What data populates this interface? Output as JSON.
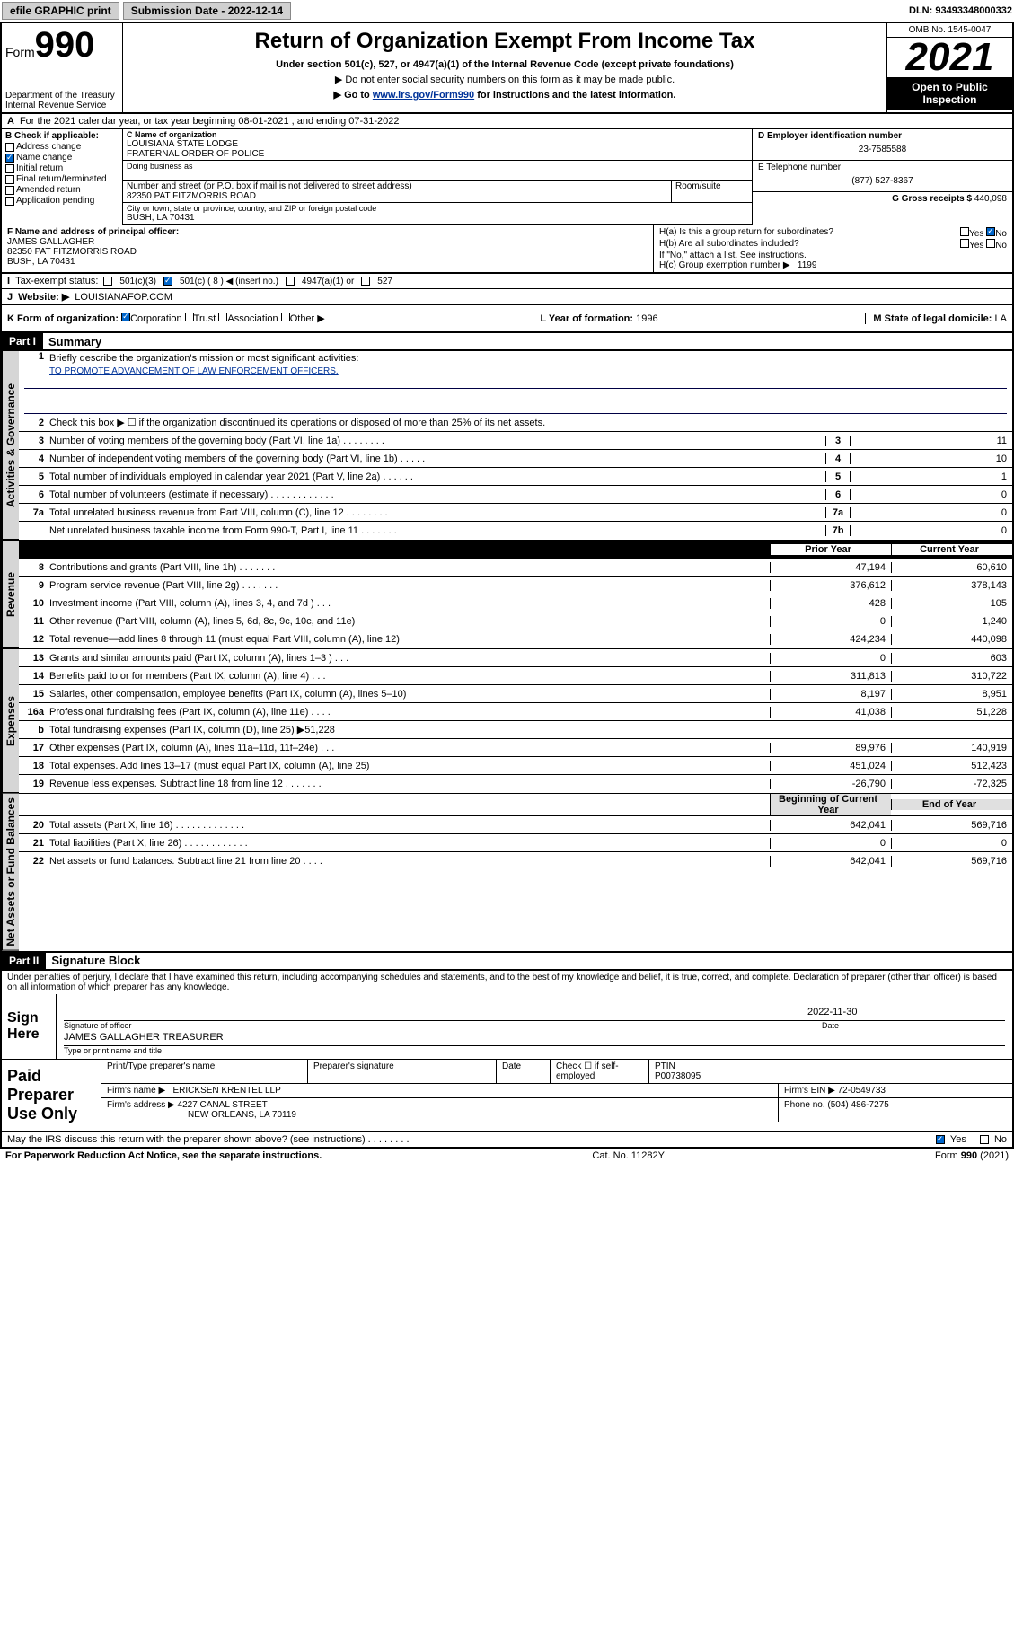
{
  "topbar": {
    "efile": "efile GRAPHIC print",
    "submission": "Submission Date - 2022-12-14",
    "dln": "DLN: 93493348000332"
  },
  "header": {
    "form_label": "Form",
    "form_num": "990",
    "dept": "Department of the Treasury",
    "irs": "Internal Revenue Service",
    "title": "Return of Organization Exempt From Income Tax",
    "sub": "Under section 501(c), 527, or 4947(a)(1) of the Internal Revenue Code (except private foundations)",
    "note1": "▶ Do not enter social security numbers on this form as it may be made public.",
    "note2_pre": "▶ Go to ",
    "note2_link": "www.irs.gov/Form990",
    "note2_post": " for instructions and the latest information.",
    "omb": "OMB No. 1545-0047",
    "year": "2021",
    "open": "Open to Public Inspection"
  },
  "rowA": "For the 2021 calendar year, or tax year beginning 08-01-2021    , and ending 07-31-2022",
  "sectionB": {
    "label": "B Check if applicable:",
    "items": [
      "Address change",
      "Name change",
      "Initial return",
      "Final return/terminated",
      "Amended return",
      "Application pending"
    ],
    "checked_idx": 1
  },
  "sectionC": {
    "lab_name": "C Name of organization",
    "name": "LOUISIANA STATE LODGE",
    "name2": "FRATERNAL ORDER OF POLICE",
    "dba_lab": "Doing business as",
    "addr_lab": "Number and street (or P.O. box if mail is not delivered to street address)",
    "room_lab": "Room/suite",
    "addr": "82350 PAT FITZMORRIS ROAD",
    "city_lab": "City or town, state or province, country, and ZIP or foreign postal code",
    "city": "BUSH, LA  70431"
  },
  "sectionD": {
    "lab": "D Employer identification number",
    "val": "23-7585588",
    "tel_lab": "E Telephone number",
    "tel": "(877) 527-8367",
    "gross_lab": "G Gross receipts $",
    "gross": "440,098"
  },
  "sectionF": {
    "lab": "F Name and address of principal officer:",
    "name": "JAMES GALLAGHER",
    "addr": "82350 PAT FITZMORRIS ROAD",
    "city": "BUSH, LA  70431"
  },
  "sectionH": {
    "a": "H(a)  Is this a group return for subordinates?",
    "b": "H(b)  Are all subordinates included?",
    "note": "If \"No,\" attach a list. See instructions.",
    "c_lab": "H(c)  Group exemption number ▶",
    "c_val": "1199",
    "yes": "Yes",
    "no": "No"
  },
  "rowI": {
    "lab": "Tax-exempt status:",
    "opts": [
      "501(c)(3)",
      "501(c) ( 8 ) ◀ (insert no.)",
      "4947(a)(1) or",
      "527"
    ],
    "checked_idx": 1
  },
  "rowJ": {
    "lab": "Website: ▶",
    "val": "LOUISIANAFOP.COM"
  },
  "rowK": {
    "lab": "K Form of organization:",
    "opts": [
      "Corporation",
      "Trust",
      "Association",
      "Other ▶"
    ],
    "checked_idx": 0,
    "l_lab": "L Year of formation:",
    "l_val": "1996",
    "m_lab": "M State of legal domicile:",
    "m_val": "LA"
  },
  "partI": {
    "hdr": "Part I",
    "title": "Summary",
    "q1": "Briefly describe the organization's mission or most significant activities:",
    "mission": "TO PROMOTE ADVANCEMENT OF LAW ENFORCEMENT OFFICERS.",
    "q2": "Check this box ▶ ☐  if the organization discontinued its operations or disposed of more than 25% of its net assets."
  },
  "gov_rows": [
    {
      "n": "3",
      "d": "Number of voting members of the governing body (Part VI, line 1a)   .    .    .    .    .    .    .    .",
      "box": "3",
      "v": "11"
    },
    {
      "n": "4",
      "d": "Number of independent voting members of the governing body (Part VI, line 1b)   .    .    .    .    .",
      "box": "4",
      "v": "10"
    },
    {
      "n": "5",
      "d": "Total number of individuals employed in calendar year 2021 (Part V, line 2a)   .    .    .    .    .    .",
      "box": "5",
      "v": "1"
    },
    {
      "n": "6",
      "d": "Total number of volunteers (estimate if necessary)   .    .    .    .    .    .    .    .    .    .    .    .",
      "box": "6",
      "v": "0"
    },
    {
      "n": "7a",
      "d": "Total unrelated business revenue from Part VIII, column (C), line 12   .    .    .    .    .    .    .    .",
      "box": "7a",
      "v": "0"
    },
    {
      "n": "",
      "d": "Net unrelated business taxable income from Form 990-T, Part I, line 11   .    .    .    .    .    .    .",
      "box": "7b",
      "v": "0"
    }
  ],
  "col_hdrs": {
    "prior": "Prior Year",
    "current": "Current Year",
    "begin": "Beginning of Current Year",
    "end": "End of Year"
  },
  "rev_rows": [
    {
      "n": "8",
      "d": "Contributions and grants (Part VIII, line 1h)   .    .    .    .    .    .    .",
      "p": "47,194",
      "c": "60,610"
    },
    {
      "n": "9",
      "d": "Program service revenue (Part VIII, line 2g)   .    .    .    .    .    .    .",
      "p": "376,612",
      "c": "378,143"
    },
    {
      "n": "10",
      "d": "Investment income (Part VIII, column (A), lines 3, 4, and 7d )   .    .    .",
      "p": "428",
      "c": "105"
    },
    {
      "n": "11",
      "d": "Other revenue (Part VIII, column (A), lines 5, 6d, 8c, 9c, 10c, and 11e)",
      "p": "0",
      "c": "1,240"
    },
    {
      "n": "12",
      "d": "Total revenue—add lines 8 through 11 (must equal Part VIII, column (A), line 12)",
      "p": "424,234",
      "c": "440,098"
    }
  ],
  "exp_rows": [
    {
      "n": "13",
      "d": "Grants and similar amounts paid (Part IX, column (A), lines 1–3 )   .    .    .",
      "p": "0",
      "c": "603"
    },
    {
      "n": "14",
      "d": "Benefits paid to or for members (Part IX, column (A), line 4)   .    .    .",
      "p": "311,813",
      "c": "310,722"
    },
    {
      "n": "15",
      "d": "Salaries, other compensation, employee benefits (Part IX, column (A), lines 5–10)",
      "p": "8,197",
      "c": "8,951"
    },
    {
      "n": "16a",
      "d": "Professional fundraising fees (Part IX, column (A), line 11e)   .    .    .    .",
      "p": "41,038",
      "c": "51,228"
    },
    {
      "n": "b",
      "d": "Total fundraising expenses (Part IX, column (D), line 25) ▶51,228",
      "p": "",
      "c": "",
      "shade": true
    },
    {
      "n": "17",
      "d": "Other expenses (Part IX, column (A), lines 11a–11d, 11f–24e)   .    .    .",
      "p": "89,976",
      "c": "140,919"
    },
    {
      "n": "18",
      "d": "Total expenses. Add lines 13–17 (must equal Part IX, column (A), line 25)",
      "p": "451,024",
      "c": "512,423"
    },
    {
      "n": "19",
      "d": "Revenue less expenses. Subtract line 18 from line 12   .    .    .    .    .    .    .",
      "p": "-26,790",
      "c": "-72,325"
    }
  ],
  "na_rows": [
    {
      "n": "20",
      "d": "Total assets (Part X, line 16)   .    .    .    .    .    .    .    .    .    .    .    .    .",
      "p": "642,041",
      "c": "569,716"
    },
    {
      "n": "21",
      "d": "Total liabilities (Part X, line 26)   .    .    .    .    .    .    .    .    .    .    .    .",
      "p": "0",
      "c": "0"
    },
    {
      "n": "22",
      "d": "Net assets or fund balances. Subtract line 21 from line 20   .    .    .    .",
      "p": "642,041",
      "c": "569,716"
    }
  ],
  "vtabs": {
    "gov": "Activities & Governance",
    "rev": "Revenue",
    "exp": "Expenses",
    "na": "Net Assets or Fund Balances"
  },
  "partII": {
    "hdr": "Part II",
    "title": "Signature Block",
    "decl": "Under penalties of perjury, I declare that I have examined this return, including accompanying schedules and statements, and to the best of my knowledge and belief, it is true, correct, and complete. Declaration of preparer (other than officer) is based on all information of which preparer has any knowledge."
  },
  "sign": {
    "lab": "Sign Here",
    "sig_of_officer": "Signature of officer",
    "date_lab": "Date",
    "date": "2022-11-30",
    "name": "JAMES GALLAGHER  TREASURER",
    "type_lab": "Type or print name and title"
  },
  "paid": {
    "lab": "Paid Preparer Use Only",
    "h1": "Print/Type preparer's name",
    "h2": "Preparer's signature",
    "h3": "Date",
    "h4_pre": "Check ☐ if self-employed",
    "h5": "PTIN",
    "ptin": "P00738095",
    "firm_lab": "Firm's name    ▶",
    "firm": "ERICKSEN KRENTEL LLP",
    "ein_lab": "Firm's EIN ▶",
    "ein": "72-0549733",
    "addr_lab": "Firm's address ▶",
    "addr": "4227 CANAL STREET",
    "city": "NEW ORLEANS, LA  70119",
    "phone_lab": "Phone no.",
    "phone": "(504) 486-7275"
  },
  "discuss": {
    "q": "May the IRS discuss this return with the preparer shown above? (see instructions)   .    .    .    .    .    .    .    .",
    "yes": "Yes",
    "no": "No"
  },
  "footer": {
    "l": "For Paperwork Reduction Act Notice, see the separate instructions.",
    "m": "Cat. No. 11282Y",
    "r": "Form 990 (2021)"
  }
}
